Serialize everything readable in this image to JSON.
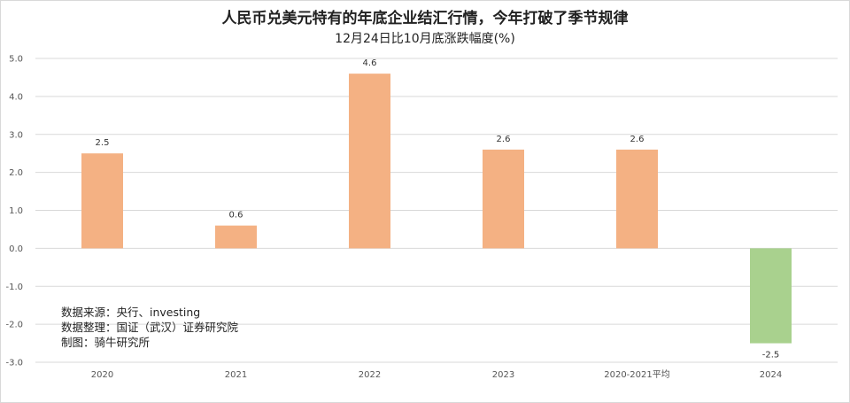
{
  "chart_data": {
    "type": "bar",
    "title": "人民币兑美元特有的年底企业结汇行情，今年打破了季节规律",
    "subtitle": "12月24日比10月底涨跌幅度(%)",
    "categories": [
      "2020",
      "2021",
      "2022",
      "2023",
      "2020-2021平均",
      "2024"
    ],
    "values": [
      2.5,
      0.6,
      4.6,
      2.6,
      2.6,
      -2.5
    ],
    "data_labels": [
      "2.5",
      "0.6",
      "4.6",
      "2.6",
      "2.6",
      "-2.5"
    ],
    "ylim": [
      -3.0,
      5.0
    ],
    "yticks": [
      "5.0",
      "4.0",
      "3.0",
      "2.0",
      "1.0",
      "0.0",
      "-1.0",
      "-2.0",
      "-3.0"
    ],
    "grid": true,
    "colors": {
      "positive": "#f4b183",
      "negative": "#a9d18e",
      "grid": "#d9d9d9"
    }
  },
  "notes": {
    "source": "数据来源：央行、investing",
    "compiled": "数据整理：国证（武汉）证券研究院",
    "drawn": "制图：骑牛研究所"
  }
}
